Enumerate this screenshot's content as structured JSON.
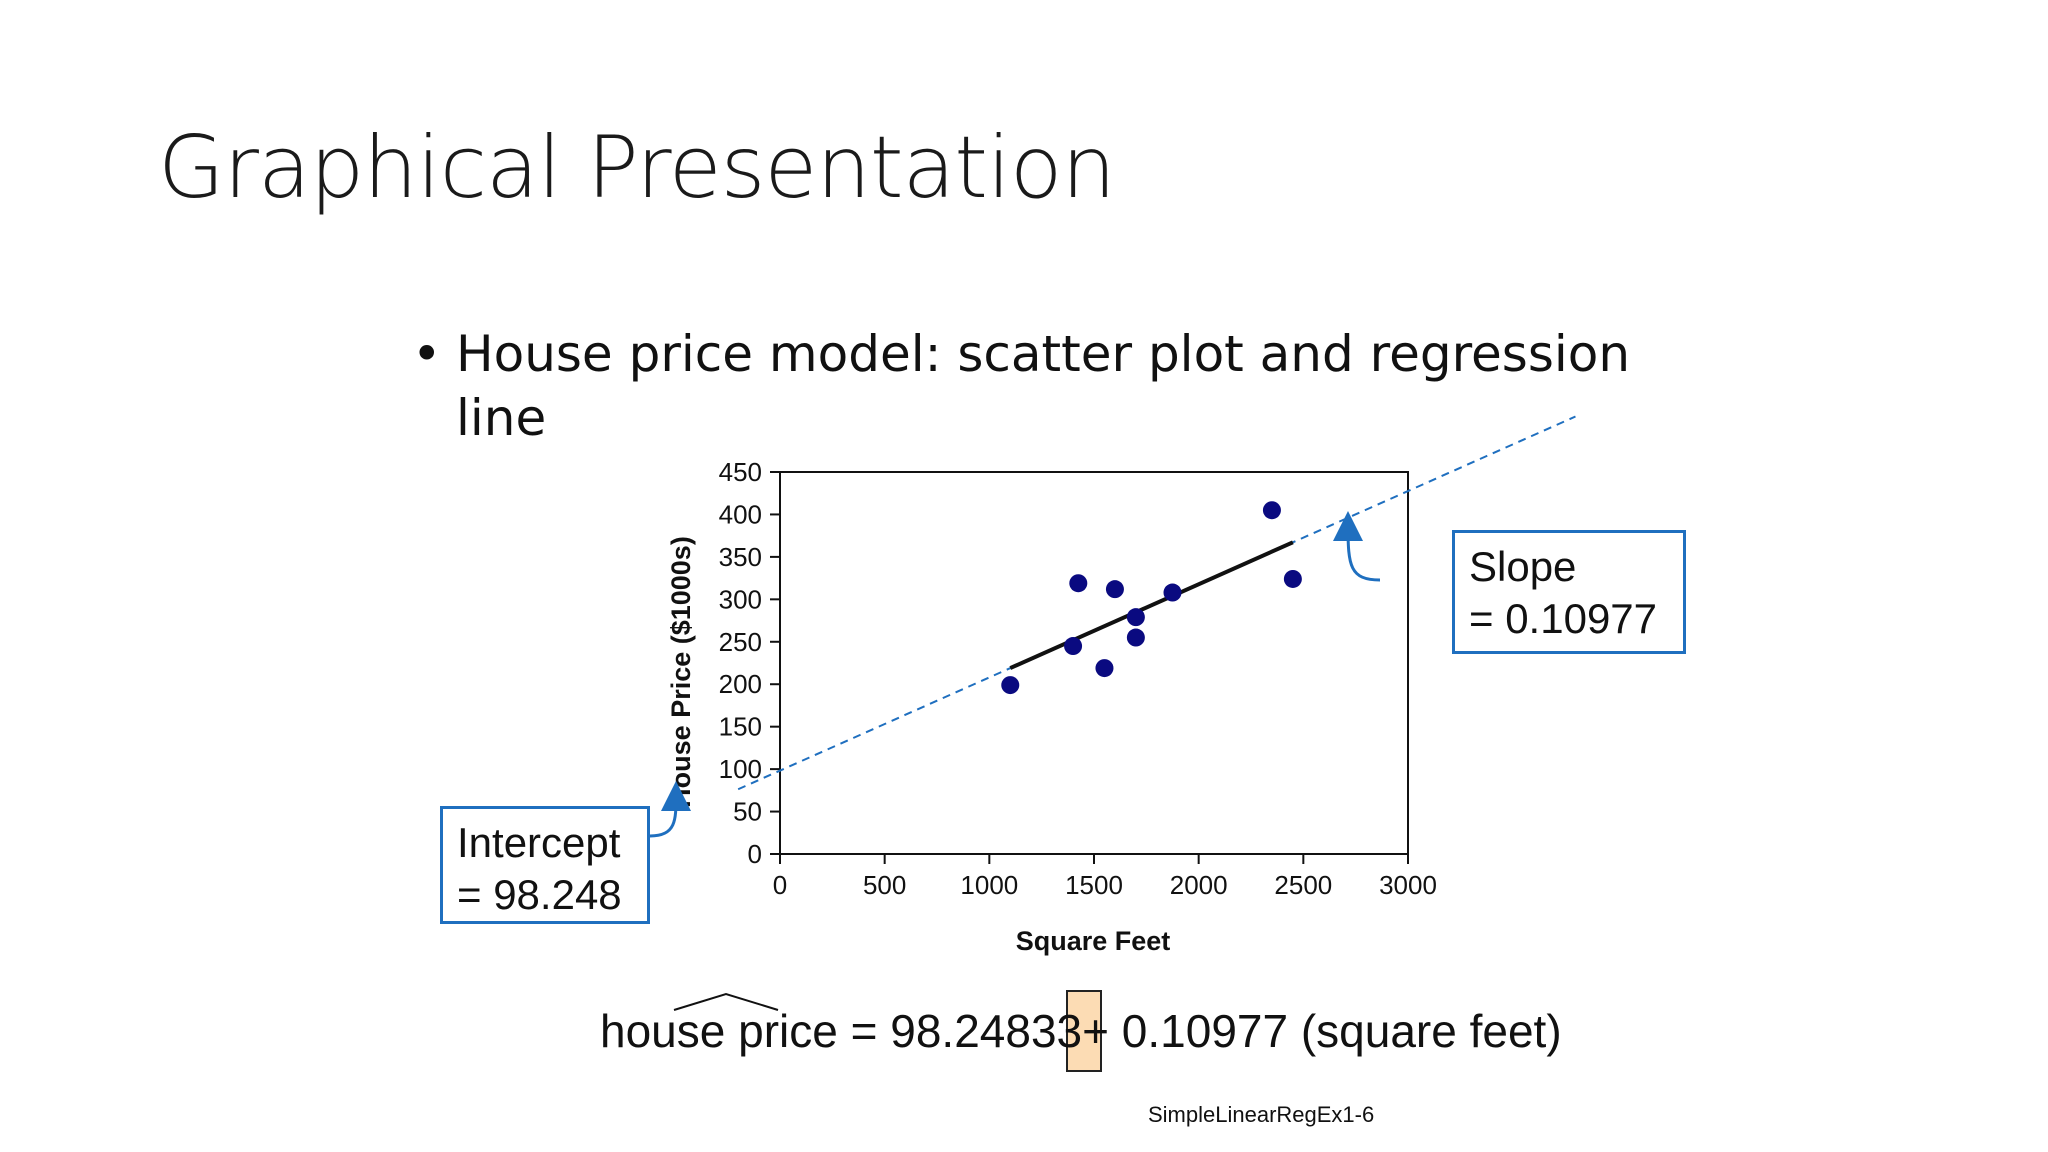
{
  "slide": {
    "title": "Graphical Presentation",
    "bullet": "House price model:  scatter plot and regression line",
    "equation": {
      "lhs": "house price",
      "equals": "=",
      "intercept": "98.24833",
      "plus": "+",
      "rhs": "0.10977 (square feet)"
    },
    "footer": "SimpleLinearRegEx1-6",
    "callouts": {
      "intercept_label": "Intercept",
      "intercept_value": "= 98.248",
      "slope_label": "Slope",
      "slope_value": "= 0.10977"
    },
    "colors": {
      "points": "#0a0a80",
      "fit_line": "#111111",
      "dashed_line": "#1f6fbf",
      "callout_border": "#1f6fbf",
      "plus_highlight": "#fcdcb4"
    }
  },
  "chart_data": {
    "type": "scatter",
    "xlabel": "Square Feet",
    "ylabel": "House Price ($1000s)",
    "xlim": [
      0,
      3000
    ],
    "ylim": [
      0,
      450
    ],
    "xticks": [
      0,
      500,
      1000,
      1500,
      2000,
      2500,
      3000
    ],
    "yticks": [
      0,
      50,
      100,
      150,
      200,
      250,
      300,
      350,
      400,
      450
    ],
    "grid": false,
    "series": [
      {
        "points": [
          {
            "x": 1100,
            "y": 199
          },
          {
            "x": 1400,
            "y": 245
          },
          {
            "x": 1425,
            "y": 319
          },
          {
            "x": 1550,
            "y": 219
          },
          {
            "x": 1600,
            "y": 312
          },
          {
            "x": 1700,
            "y": 279
          },
          {
            "x": 1700,
            "y": 255
          },
          {
            "x": 1875,
            "y": 308
          },
          {
            "x": 2350,
            "y": 405
          },
          {
            "x": 2450,
            "y": 324
          }
        ]
      }
    ],
    "regression": {
      "intercept": 98.248,
      "slope": 0.10977,
      "solid_range": [
        1100,
        2450
      ],
      "dashed_range": [
        -200,
        3800
      ]
    }
  }
}
